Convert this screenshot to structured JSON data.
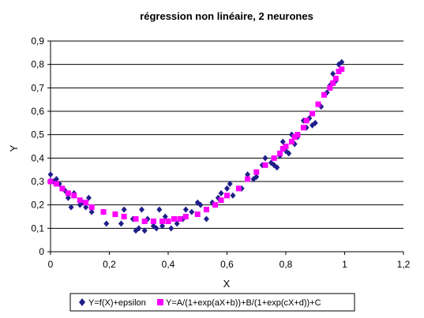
{
  "chart_data": {
    "type": "scatter",
    "title": "régression non linéaire, 2 neurones",
    "xlabel": "X",
    "ylabel": "Y",
    "xlim": [
      0,
      1.2
    ],
    "ylim": [
      0,
      0.9
    ],
    "xticks": [
      "0",
      "0,2",
      "0,4",
      "0,6",
      "0,8",
      "1",
      "1,2"
    ],
    "yticks": [
      "0",
      "0,1",
      "0,2",
      "0,3",
      "0,4",
      "0,5",
      "0,6",
      "0,7",
      "0,8",
      "0,9"
    ],
    "grid": "horizontal",
    "legend": "bottom",
    "series": [
      {
        "name": "Y=f(X)+epsilon",
        "marker": "diamond",
        "color": "#1f1f8a",
        "points": [
          [
            0.0,
            0.33
          ],
          [
            0.01,
            0.3
          ],
          [
            0.02,
            0.31
          ],
          [
            0.03,
            0.29
          ],
          [
            0.04,
            0.27
          ],
          [
            0.05,
            0.26
          ],
          [
            0.06,
            0.23
          ],
          [
            0.07,
            0.19
          ],
          [
            0.08,
            0.25
          ],
          [
            0.1,
            0.2
          ],
          [
            0.11,
            0.21
          ],
          [
            0.12,
            0.19
          ],
          [
            0.13,
            0.23
          ],
          [
            0.14,
            0.17
          ],
          [
            0.18,
            0.17
          ],
          [
            0.19,
            0.12
          ],
          [
            0.22,
            0.16
          ],
          [
            0.24,
            0.12
          ],
          [
            0.25,
            0.18
          ],
          [
            0.28,
            0.14
          ],
          [
            0.29,
            0.09
          ],
          [
            0.3,
            0.1
          ],
          [
            0.31,
            0.18
          ],
          [
            0.32,
            0.09
          ],
          [
            0.33,
            0.14
          ],
          [
            0.35,
            0.11
          ],
          [
            0.36,
            0.1
          ],
          [
            0.37,
            0.18
          ],
          [
            0.38,
            0.11
          ],
          [
            0.39,
            0.15
          ],
          [
            0.4,
            0.13
          ],
          [
            0.41,
            0.1
          ],
          [
            0.42,
            0.14
          ],
          [
            0.43,
            0.12
          ],
          [
            0.45,
            0.14
          ],
          [
            0.46,
            0.18
          ],
          [
            0.48,
            0.17
          ],
          [
            0.5,
            0.21
          ],
          [
            0.51,
            0.2
          ],
          [
            0.53,
            0.14
          ],
          [
            0.55,
            0.21
          ],
          [
            0.57,
            0.23
          ],
          [
            0.58,
            0.25
          ],
          [
            0.6,
            0.27
          ],
          [
            0.61,
            0.29
          ],
          [
            0.62,
            0.24
          ],
          [
            0.65,
            0.27
          ],
          [
            0.67,
            0.33
          ],
          [
            0.69,
            0.31
          ],
          [
            0.7,
            0.32
          ],
          [
            0.72,
            0.37
          ],
          [
            0.73,
            0.4
          ],
          [
            0.75,
            0.38
          ],
          [
            0.76,
            0.37
          ],
          [
            0.77,
            0.36
          ],
          [
            0.78,
            0.41
          ],
          [
            0.79,
            0.47
          ],
          [
            0.8,
            0.43
          ],
          [
            0.81,
            0.42
          ],
          [
            0.82,
            0.5
          ],
          [
            0.83,
            0.46
          ],
          [
            0.84,
            0.49
          ],
          [
            0.86,
            0.56
          ],
          [
            0.87,
            0.53
          ],
          [
            0.88,
            0.57
          ],
          [
            0.89,
            0.54
          ],
          [
            0.9,
            0.55
          ],
          [
            0.92,
            0.62
          ],
          [
            0.93,
            0.67
          ],
          [
            0.94,
            0.68
          ],
          [
            0.95,
            0.71
          ],
          [
            0.96,
            0.76
          ],
          [
            0.97,
            0.73
          ],
          [
            0.98,
            0.8
          ],
          [
            0.99,
            0.81
          ]
        ]
      },
      {
        "name": "Y=A/(1+exp(aX+b))+B/(1+exp(cX+d))+C",
        "marker": "square",
        "color": "#ff00ff",
        "points": [
          [
            0.0,
            0.3
          ],
          [
            0.02,
            0.29
          ],
          [
            0.04,
            0.27
          ],
          [
            0.06,
            0.25
          ],
          [
            0.08,
            0.24
          ],
          [
            0.1,
            0.22
          ],
          [
            0.12,
            0.21
          ],
          [
            0.14,
            0.19
          ],
          [
            0.18,
            0.17
          ],
          [
            0.22,
            0.16
          ],
          [
            0.25,
            0.15
          ],
          [
            0.29,
            0.14
          ],
          [
            0.32,
            0.13
          ],
          [
            0.35,
            0.13
          ],
          [
            0.38,
            0.13
          ],
          [
            0.4,
            0.13
          ],
          [
            0.42,
            0.14
          ],
          [
            0.44,
            0.14
          ],
          [
            0.46,
            0.15
          ],
          [
            0.5,
            0.16
          ],
          [
            0.53,
            0.18
          ],
          [
            0.56,
            0.2
          ],
          [
            0.58,
            0.22
          ],
          [
            0.6,
            0.24
          ],
          [
            0.64,
            0.27
          ],
          [
            0.67,
            0.31
          ],
          [
            0.7,
            0.34
          ],
          [
            0.73,
            0.37
          ],
          [
            0.76,
            0.4
          ],
          [
            0.78,
            0.42
          ],
          [
            0.79,
            0.44
          ],
          [
            0.8,
            0.45
          ],
          [
            0.82,
            0.47
          ],
          [
            0.83,
            0.49
          ],
          [
            0.84,
            0.5
          ],
          [
            0.86,
            0.53
          ],
          [
            0.87,
            0.56
          ],
          [
            0.89,
            0.59
          ],
          [
            0.91,
            0.63
          ],
          [
            0.93,
            0.67
          ],
          [
            0.95,
            0.7
          ],
          [
            0.96,
            0.72
          ],
          [
            0.97,
            0.74
          ],
          [
            0.98,
            0.77
          ],
          [
            0.99,
            0.78
          ]
        ]
      }
    ]
  }
}
